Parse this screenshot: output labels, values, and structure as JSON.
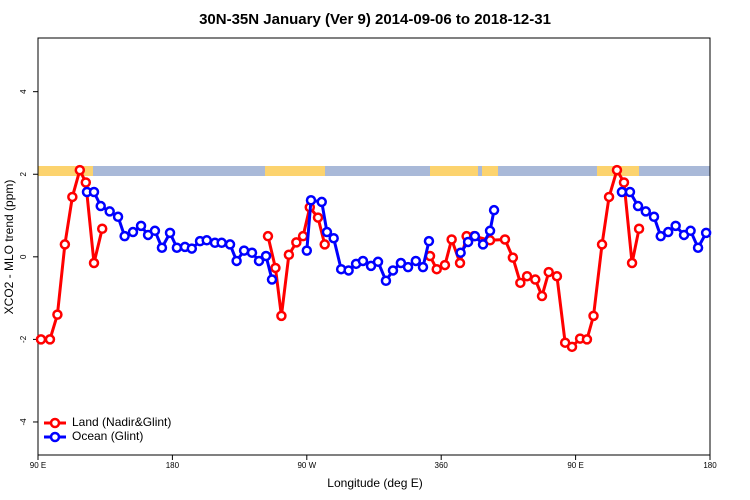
{
  "chart_data": {
    "type": "line",
    "title": "30N-35N January (Ver 9)   2014-09-06 to 2018-12-31",
    "x_label": "Longitude (deg E)",
    "y_label": "XCO2 - MLO trend (ppm)",
    "xlim": [
      90,
      540
    ],
    "ylim": [
      -4.8,
      5.3
    ],
    "xticks": [
      {
        "value": 90,
        "label": "90 E"
      },
      180,
      {
        "value": 270,
        "label": "90 W"
      },
      360,
      {
        "value": 450,
        "label": "90 E"
      },
      {
        "value": 540,
        "label": "180"
      }
    ],
    "yticks": [
      -4,
      -2,
      0,
      2,
      4
    ],
    "legend": "bottom-left",
    "series": [
      {
        "name": "Land (Nadir&Glint)",
        "color": "#ff0000",
        "x": [
          92,
          98,
          103,
          108,
          113,
          118,
          122,
          127.5,
          133,
          null,
          244,
          249,
          253,
          258,
          263,
          267.5,
          272,
          277.5,
          282,
          null,
          352.5,
          357,
          362.5,
          367,
          372.6,
          377,
          382,
          392.7,
          402.7,
          408,
          413,
          417.5,
          423,
          427.5,
          432,
          437.5,
          443,
          447.6,
          453,
          457.6,
          462,
          467.7,
          472.4,
          477.7,
          482.4,
          487.8,
          492.5
        ],
        "values": [
          -2.0,
          -2.0,
          -1.4,
          0.3,
          1.45,
          2.1,
          1.8,
          -0.15,
          0.68,
          null,
          0.5,
          -0.27,
          -1.43,
          0.05,
          0.35,
          0.5,
          1.2,
          0.95,
          0.3,
          null,
          0.02,
          -0.3,
          -0.2,
          0.42,
          -0.15,
          0.5,
          0.5,
          0.4,
          0.42,
          -0.02,
          -0.63,
          -0.47,
          -0.55,
          -0.95,
          -0.37,
          -0.47,
          -2.08,
          -2.18,
          -1.98,
          -2.0,
          -1.43,
          0.3,
          1.45,
          2.1,
          1.8,
          -0.15,
          0.68
        ]
      },
      {
        "name": "Ocean (Glint)",
        "color": "#0000ff",
        "x": [
          122.8,
          127.5,
          132,
          138,
          143.6,
          148,
          153.6,
          159,
          163.7,
          168.3,
          173,
          178.4,
          183,
          188.4,
          193,
          198.5,
          203,
          208.5,
          213,
          218.6,
          223,
          228,
          233.3,
          238,
          242.7,
          246.7,
          null,
          270,
          272.8,
          280,
          283.5,
          288,
          293,
          298,
          303,
          307.6,
          313,
          317.7,
          323,
          327.7,
          333,
          337.8,
          343,
          347.8,
          351.8,
          null,
          373,
          378,
          382.6,
          388,
          392.7,
          395.4,
          null,
          481,
          486.4,
          491.8,
          497,
          502.5,
          507,
          512,
          517,
          522.6,
          527,
          532,
          537.4
        ],
        "values": [
          1.57,
          1.57,
          1.23,
          1.1,
          0.97,
          0.5,
          0.6,
          0.75,
          0.53,
          0.63,
          0.22,
          0.58,
          0.22,
          0.24,
          0.2,
          0.38,
          0.4,
          0.34,
          0.34,
          0.3,
          -0.1,
          0.15,
          0.1,
          -0.1,
          0.02,
          -0.55,
          null,
          0.15,
          1.37,
          1.33,
          0.6,
          0.45,
          -0.3,
          -0.33,
          -0.17,
          -0.1,
          -0.22,
          -0.12,
          -0.58,
          -0.33,
          -0.15,
          -0.25,
          -0.1,
          -0.25,
          0.38,
          null,
          0.1,
          0.36,
          0.5,
          0.3,
          0.63,
          1.13,
          null,
          1.57,
          1.57,
          1.23,
          1.1,
          0.97,
          0.5,
          0.6,
          0.75,
          0.53,
          0.63,
          0.22,
          0.58
        ]
      }
    ]
  }
}
